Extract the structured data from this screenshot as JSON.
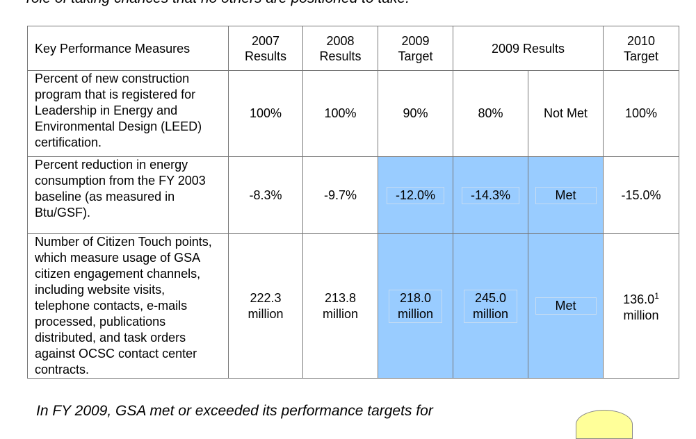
{
  "intro_text": "role of taking chances that no others are positioned to take.",
  "table": {
    "headers": [
      {
        "line1": "Key Performance Measures",
        "line2": ""
      },
      {
        "line1": "2007",
        "line2": "Results"
      },
      {
        "line1": "2008",
        "line2": "Results"
      },
      {
        "line1": "2009",
        "line2": "Target"
      },
      {
        "line1": "2009 Results",
        "line2": ""
      },
      {
        "line1": "2010",
        "line2": "Target"
      }
    ],
    "rows": [
      {
        "measure": "Percent of new construction program that is registered for Leadership in Energy and Environmental Design (LEED) certification.",
        "r2007": "100%",
        "r2008": "100%",
        "t2009": "90%",
        "res2009": "80%",
        "status": "Not Met",
        "t2010": "100%",
        "t2010_note": ""
      },
      {
        "measure": "Percent reduction in energy consumption from the FY 2003 baseline (as measured in Btu/GSF).",
        "r2007": "-8.3%",
        "r2008": "-9.7%",
        "t2009": "-12.0%",
        "res2009": "-14.3%",
        "status": "Met",
        "t2010": "-15.0%",
        "t2010_note": ""
      },
      {
        "measure": "Number of Citizen Touch points, which measure usage of GSA citizen engagement channels, including website visits, telephone contacts, e-mails processed, publications distributed, and task orders against OCSC contact center contracts.",
        "r2007": [
          "222.3",
          "million"
        ],
        "r2008": [
          "213.8",
          "million"
        ],
        "t2009": [
          "218.0",
          "million"
        ],
        "res2009": [
          "245.0",
          "million"
        ],
        "status": "Met",
        "t2010": [
          "136.0",
          "million"
        ],
        "t2010_note": "1"
      }
    ]
  },
  "closing_text": "In FY 2009, GSA met or exceeded its performance targets for",
  "colors": {
    "highlight": "#99ccff",
    "border": "#777777"
  }
}
